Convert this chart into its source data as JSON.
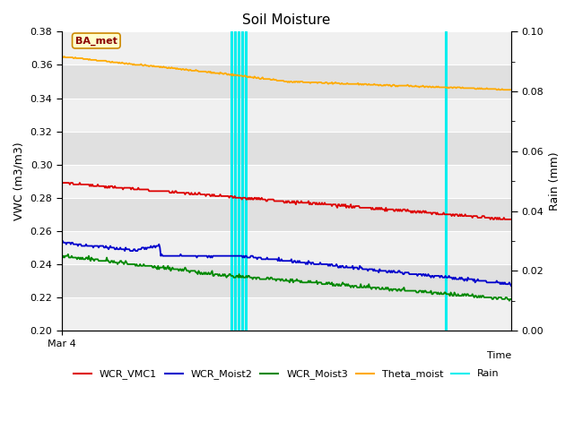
{
  "title": "Soil Moisture",
  "ylabel_left": "VWC (m3/m3)",
  "ylabel_right": "Rain (mm)",
  "xlabel": "Time",
  "xlim": [
    0,
    1
  ],
  "ylim_left": [
    0.2,
    0.38
  ],
  "ylim_right": [
    0.0,
    0.1
  ],
  "yticks_left": [
    0.2,
    0.22,
    0.24,
    0.26,
    0.28,
    0.3,
    0.32,
    0.34,
    0.36,
    0.38
  ],
  "yticks_right_major": [
    0.0,
    0.02,
    0.04,
    0.06,
    0.08,
    0.1
  ],
  "yticks_right_minor": [
    0.01,
    0.03,
    0.05,
    0.07,
    0.09
  ],
  "xticklabel_start": "Mar 4",
  "annotation_box": "BA_met",
  "colors": {
    "WCR_VMC1": "#dd0000",
    "WCR_Moist2": "#0000cc",
    "WCR_Moist3": "#008800",
    "Theta_moist": "#ffaa00",
    "Rain": "#00eeee",
    "background_light": "#f0f0f0",
    "background_dark": "#e0e0e0",
    "grid": "#ffffff"
  },
  "rain_events_x": [
    0.378,
    0.386,
    0.394,
    0.402,
    0.41,
    0.855
  ],
  "n_points": 500,
  "seed": 12
}
